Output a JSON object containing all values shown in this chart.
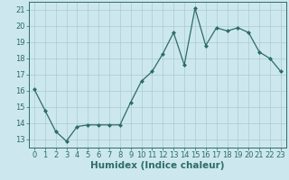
{
  "x": [
    0,
    1,
    2,
    3,
    4,
    5,
    6,
    7,
    8,
    9,
    10,
    11,
    12,
    13,
    14,
    15,
    16,
    17,
    18,
    19,
    20,
    21,
    22,
    23
  ],
  "y": [
    16.1,
    14.8,
    13.5,
    12.9,
    13.8,
    13.9,
    13.9,
    13.9,
    13.9,
    15.3,
    16.6,
    17.2,
    18.3,
    19.6,
    17.6,
    21.1,
    18.8,
    19.9,
    19.7,
    19.9,
    19.6,
    18.4,
    18.0,
    17.2
  ],
  "line_color": "#2e6b6b",
  "marker": "D",
  "marker_size": 2.0,
  "bg_color": "#cce8ee",
  "grid_color": "#aacccc",
  "xlabel": "Humidex (Indice chaleur)",
  "xlim": [
    -0.5,
    23.5
  ],
  "ylim": [
    12.5,
    21.5
  ],
  "yticks": [
    13,
    14,
    15,
    16,
    17,
    18,
    19,
    20,
    21
  ],
  "xticks": [
    0,
    1,
    2,
    3,
    4,
    5,
    6,
    7,
    8,
    9,
    10,
    11,
    12,
    13,
    14,
    15,
    16,
    17,
    18,
    19,
    20,
    21,
    22,
    23
  ],
  "tick_color": "#2e6b6b",
  "xlabel_fontsize": 7.5,
  "tick_fontsize": 6.0,
  "linewidth": 0.9
}
